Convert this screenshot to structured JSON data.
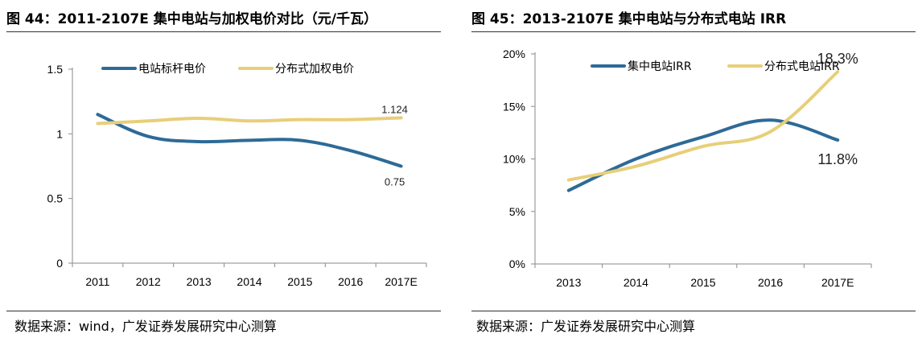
{
  "left": {
    "title": "图 44：2011-2107E 集中电站与加权电价对比（元/千瓦）",
    "source": "数据来源：wind，广发证券发展研究中心测算"
  },
  "right": {
    "title": "图 45：2013-2107E 集中电站与分布式电站 IRR",
    "source": "数据来源：广发证券发展研究中心测算"
  },
  "colors": {
    "blue": "#2e6a97",
    "gold": "#e7cf79",
    "axis": "#888888"
  },
  "chart_data": [
    {
      "type": "line",
      "title": "图 44：2011-2107E 集中电站与加权电价对比（元/千瓦）",
      "categories": [
        "2011",
        "2012",
        "2013",
        "2014",
        "2015",
        "2016",
        "2017E"
      ],
      "ylim": [
        0,
        1.5
      ],
      "yticks": [
        0,
        0.5,
        1,
        1.5
      ],
      "ytick_labels": [
        "0",
        "0.5",
        "1",
        "1.5"
      ],
      "legend_position": "top",
      "series": [
        {
          "name": "电站标杆电价",
          "color": "#2e6a97",
          "values": [
            1.15,
            0.98,
            0.94,
            0.95,
            0.95,
            0.87,
            0.75
          ]
        },
        {
          "name": "分布式加权电价",
          "color": "#e7cf79",
          "values": [
            1.08,
            1.1,
            1.12,
            1.1,
            1.11,
            1.11,
            1.124
          ]
        }
      ],
      "data_labels": [
        {
          "series": 1,
          "index": 6,
          "text": "1.124",
          "pos": "above"
        },
        {
          "series": 0,
          "index": 6,
          "text": "0.75",
          "pos": "below"
        }
      ]
    },
    {
      "type": "line",
      "title": "图 45：2013-2107E 集中电站与分布式电站 IRR",
      "categories": [
        "2013",
        "2014",
        "2015",
        "2016",
        "2017E"
      ],
      "ylim": [
        0,
        0.2
      ],
      "yticks": [
        0,
        0.05,
        0.1,
        0.15,
        0.2
      ],
      "ytick_labels": [
        "0%",
        "5%",
        "10%",
        "15%",
        "20%"
      ],
      "legend_position": "top",
      "series": [
        {
          "name": "集中电站IRR",
          "color": "#2e6a97",
          "values": [
            0.07,
            0.1,
            0.121,
            0.137,
            0.118
          ]
        },
        {
          "name": "分布式电站IRR",
          "color": "#e7cf79",
          "values": [
            0.08,
            0.093,
            0.112,
            0.126,
            0.183
          ]
        }
      ],
      "data_labels": [
        {
          "series": 1,
          "index": 4,
          "text": "18.3%",
          "pos": "above"
        },
        {
          "series": 0,
          "index": 4,
          "text": "11.8%",
          "pos": "below"
        }
      ]
    }
  ]
}
